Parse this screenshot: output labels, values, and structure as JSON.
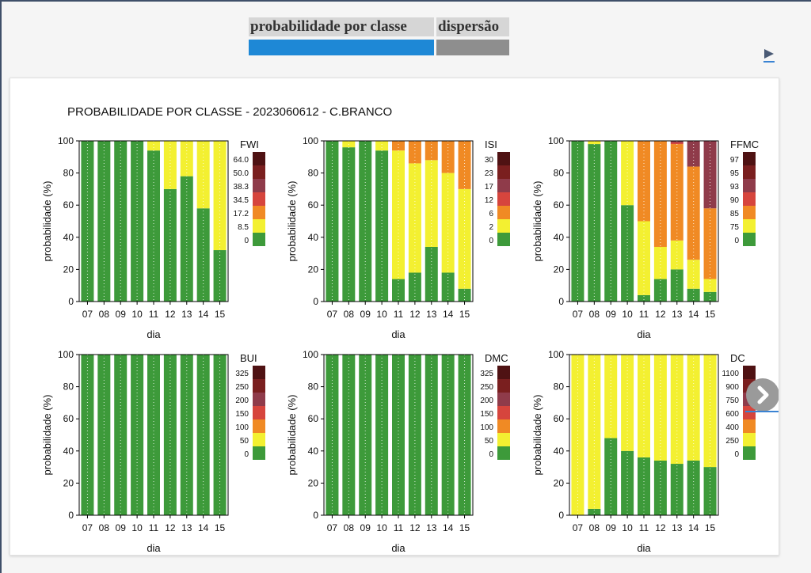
{
  "tabs": [
    {
      "label": "probabilidade por classe",
      "active": true,
      "color": "#1e88d6"
    },
    {
      "label": "dispersão",
      "active": false,
      "color": "#8e8e8e"
    }
  ],
  "play_icon": "play-icon",
  "next_icon": "chevron-right-icon",
  "panel_title": "PROBABILIDADE POR CLASSE - 2023060612 - C.BRANCO",
  "class_colors": [
    "#3d9a3a",
    "#f3f031",
    "#f08a24",
    "#d6453d",
    "#8f3b4a",
    "#7a1f1f",
    "#4f1213"
  ],
  "chart_data": [
    {
      "type": "bar",
      "stacked": true,
      "index": "FWI",
      "categories": [
        "07",
        "08",
        "09",
        "10",
        "11",
        "12",
        "13",
        "14",
        "15"
      ],
      "xlabel": "dia",
      "ylabel": "probabilidade (%)",
      "ylim": [
        0,
        100
      ],
      "yticks": [
        0,
        20,
        40,
        60,
        80,
        100
      ],
      "legend_title": "FWI",
      "legend_labels": [
        "0",
        "8.5",
        "17.2",
        "34.5",
        "38.3",
        "50.0",
        "64.0"
      ],
      "series": [
        {
          "values": [
            100,
            100,
            100,
            100,
            94,
            70,
            78,
            58,
            32
          ]
        },
        {
          "values": [
            0,
            0,
            0,
            0,
            6,
            30,
            22,
            42,
            68
          ]
        },
        {
          "values": [
            0,
            0,
            0,
            0,
            0,
            0,
            0,
            0,
            0
          ]
        },
        {
          "values": [
            0,
            0,
            0,
            0,
            0,
            0,
            0,
            0,
            0
          ]
        },
        {
          "values": [
            0,
            0,
            0,
            0,
            0,
            0,
            0,
            0,
            0
          ]
        },
        {
          "values": [
            0,
            0,
            0,
            0,
            0,
            0,
            0,
            0,
            0
          ]
        },
        {
          "values": [
            0,
            0,
            0,
            0,
            0,
            0,
            0,
            0,
            0
          ]
        }
      ]
    },
    {
      "type": "bar",
      "stacked": true,
      "index": "ISI",
      "categories": [
        "07",
        "08",
        "09",
        "10",
        "11",
        "12",
        "13",
        "14",
        "15"
      ],
      "xlabel": "dia",
      "ylabel": "probabilidade (%)",
      "ylim": [
        0,
        100
      ],
      "yticks": [
        0,
        20,
        40,
        60,
        80,
        100
      ],
      "legend_title": "ISI",
      "legend_labels": [
        "0",
        "2",
        "6",
        "12",
        "17",
        "23",
        "30"
      ],
      "series": [
        {
          "values": [
            100,
            96,
            100,
            94,
            14,
            18,
            34,
            18,
            8
          ]
        },
        {
          "values": [
            0,
            4,
            0,
            6,
            80,
            68,
            54,
            62,
            62
          ]
        },
        {
          "values": [
            0,
            0,
            0,
            0,
            6,
            14,
            12,
            20,
            30
          ]
        },
        {
          "values": [
            0,
            0,
            0,
            0,
            0,
            0,
            0,
            0,
            0
          ]
        },
        {
          "values": [
            0,
            0,
            0,
            0,
            0,
            0,
            0,
            0,
            0
          ]
        },
        {
          "values": [
            0,
            0,
            0,
            0,
            0,
            0,
            0,
            0,
            0
          ]
        },
        {
          "values": [
            0,
            0,
            0,
            0,
            0,
            0,
            0,
            0,
            0
          ]
        }
      ]
    },
    {
      "type": "bar",
      "stacked": true,
      "index": "FFMC",
      "categories": [
        "07",
        "08",
        "09",
        "10",
        "11",
        "12",
        "13",
        "14",
        "15"
      ],
      "xlabel": "dia",
      "ylabel": "probabilidade (%)",
      "ylim": [
        0,
        100
      ],
      "yticks": [
        0,
        20,
        40,
        60,
        80,
        100
      ],
      "legend_title": "FFMC",
      "legend_labels": [
        "0",
        "75",
        "85",
        "90",
        "93",
        "95",
        "97"
      ],
      "series": [
        {
          "values": [
            100,
            98,
            100,
            60,
            4,
            14,
            20,
            8,
            6
          ]
        },
        {
          "values": [
            0,
            2,
            0,
            40,
            46,
            20,
            18,
            18,
            8
          ]
        },
        {
          "values": [
            0,
            0,
            0,
            0,
            50,
            66,
            60,
            58,
            44
          ]
        },
        {
          "values": [
            0,
            0,
            0,
            0,
            0,
            0,
            1,
            0,
            0
          ]
        },
        {
          "values": [
            0,
            0,
            0,
            0,
            0,
            0,
            1,
            16,
            42
          ]
        },
        {
          "values": [
            0,
            0,
            0,
            0,
            0,
            0,
            0,
            0,
            0
          ]
        },
        {
          "values": [
            0,
            0,
            0,
            0,
            0,
            0,
            0,
            0,
            0
          ]
        }
      ]
    },
    {
      "type": "bar",
      "stacked": true,
      "index": "BUI",
      "categories": [
        "07",
        "08",
        "09",
        "10",
        "11",
        "12",
        "13",
        "14",
        "15"
      ],
      "xlabel": "dia",
      "ylabel": "probabilidade (%)",
      "ylim": [
        0,
        100
      ],
      "yticks": [
        0,
        20,
        40,
        60,
        80,
        100
      ],
      "legend_title": "BUI",
      "legend_labels": [
        "0",
        "50",
        "100",
        "150",
        "200",
        "250",
        "325"
      ],
      "series": [
        {
          "values": [
            100,
            100,
            100,
            100,
            100,
            100,
            100,
            100,
            100
          ]
        },
        {
          "values": [
            0,
            0,
            0,
            0,
            0,
            0,
            0,
            0,
            0
          ]
        },
        {
          "values": [
            0,
            0,
            0,
            0,
            0,
            0,
            0,
            0,
            0
          ]
        },
        {
          "values": [
            0,
            0,
            0,
            0,
            0,
            0,
            0,
            0,
            0
          ]
        },
        {
          "values": [
            0,
            0,
            0,
            0,
            0,
            0,
            0,
            0,
            0
          ]
        },
        {
          "values": [
            0,
            0,
            0,
            0,
            0,
            0,
            0,
            0,
            0
          ]
        },
        {
          "values": [
            0,
            0,
            0,
            0,
            0,
            0,
            0,
            0,
            0
          ]
        }
      ]
    },
    {
      "type": "bar",
      "stacked": true,
      "index": "DMC",
      "categories": [
        "07",
        "08",
        "09",
        "10",
        "11",
        "12",
        "13",
        "14",
        "15"
      ],
      "xlabel": "dia",
      "ylabel": "probabilidade (%)",
      "ylim": [
        0,
        100
      ],
      "yticks": [
        0,
        20,
        40,
        60,
        80,
        100
      ],
      "legend_title": "DMC",
      "legend_labels": [
        "0",
        "50",
        "100",
        "150",
        "200",
        "250",
        "325"
      ],
      "series": [
        {
          "values": [
            100,
            100,
            100,
            100,
            100,
            100,
            100,
            100,
            100
          ]
        },
        {
          "values": [
            0,
            0,
            0,
            0,
            0,
            0,
            0,
            0,
            0
          ]
        },
        {
          "values": [
            0,
            0,
            0,
            0,
            0,
            0,
            0,
            0,
            0
          ]
        },
        {
          "values": [
            0,
            0,
            0,
            0,
            0,
            0,
            0,
            0,
            0
          ]
        },
        {
          "values": [
            0,
            0,
            0,
            0,
            0,
            0,
            0,
            0,
            0
          ]
        },
        {
          "values": [
            0,
            0,
            0,
            0,
            0,
            0,
            0,
            0,
            0
          ]
        },
        {
          "values": [
            0,
            0,
            0,
            0,
            0,
            0,
            0,
            0,
            0
          ]
        }
      ]
    },
    {
      "type": "bar",
      "stacked": true,
      "index": "DC",
      "categories": [
        "07",
        "08",
        "09",
        "10",
        "11",
        "12",
        "13",
        "14",
        "15"
      ],
      "xlabel": "dia",
      "ylabel": "probabilidade (%)",
      "ylim": [
        0,
        100
      ],
      "yticks": [
        0,
        20,
        40,
        60,
        80,
        100
      ],
      "legend_title": "DC",
      "legend_labels": [
        "0",
        "250",
        "400",
        "600",
        "750",
        "900",
        "1100"
      ],
      "series": [
        {
          "values": [
            0,
            4,
            48,
            40,
            36,
            34,
            32,
            34,
            30
          ]
        },
        {
          "values": [
            100,
            96,
            52,
            60,
            64,
            66,
            68,
            66,
            70
          ]
        },
        {
          "values": [
            0,
            0,
            0,
            0,
            0,
            0,
            0,
            0,
            0
          ]
        },
        {
          "values": [
            0,
            0,
            0,
            0,
            0,
            0,
            0,
            0,
            0
          ]
        },
        {
          "values": [
            0,
            0,
            0,
            0,
            0,
            0,
            0,
            0,
            0
          ]
        },
        {
          "values": [
            0,
            0,
            0,
            0,
            0,
            0,
            0,
            0,
            0
          ]
        },
        {
          "values": [
            0,
            0,
            0,
            0,
            0,
            0,
            0,
            0,
            0
          ]
        }
      ]
    }
  ]
}
